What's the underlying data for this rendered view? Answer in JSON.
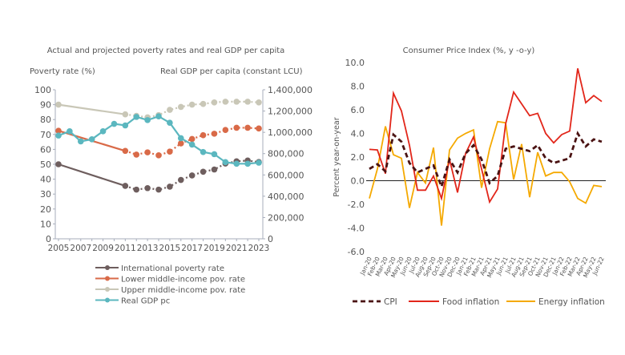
{
  "chart_data": [
    {
      "type": "line",
      "title": "Actual and projected poverty rates and real GDP per capita",
      "ylabel": "Poverty rate (%)",
      "y2label": "Real GDP per capita (constant LCU)",
      "ylim": [
        0,
        100
      ],
      "y2lim": [
        0,
        1400000
      ],
      "yticks": [
        "0",
        "10",
        "20",
        "30",
        "40",
        "50",
        "60",
        "70",
        "80",
        "90",
        "100"
      ],
      "y2ticks": [
        "0",
        "200,000",
        "400,000",
        "600,000",
        "800,000",
        "1,000,000",
        "1,200,000",
        "1,400,000"
      ],
      "xticks": [
        "2005",
        "2007",
        "2009",
        "2011",
        "2013",
        "2015",
        "2017",
        "2019",
        "2021",
        "2023"
      ],
      "xlim": [
        2005,
        2023
      ],
      "grid": false,
      "legend": "bottom",
      "series": [
        {
          "name": "International poverty rate",
          "color": "#6e5e5e",
          "axis": "left",
          "x": [
            2005,
            2011,
            2012,
            2013,
            2014,
            2015,
            2016,
            2017,
            2018,
            2019,
            2020,
            2021,
            2022,
            2023
          ],
          "values": [
            50,
            35.5,
            33,
            34,
            33,
            35,
            39.5,
            42.5,
            45,
            46.5,
            50.5,
            52,
            52.5,
            51.5
          ],
          "projected_from": 2011
        },
        {
          "name": "Lower middle-income pov. rate",
          "color": "#d96a48",
          "axis": "left",
          "x": [
            2005,
            2011,
            2012,
            2013,
            2014,
            2015,
            2016,
            2017,
            2018,
            2019,
            2020,
            2021,
            2022,
            2023
          ],
          "values": [
            72.5,
            59,
            56.5,
            58,
            56,
            58.5,
            64,
            67,
            69.5,
            70.5,
            73,
            74.5,
            74.5,
            74
          ],
          "projected_from": 2011
        },
        {
          "name": "Upper middle-income pov. rate",
          "color": "#c9c7b7",
          "axis": "left",
          "x": [
            2005,
            2011,
            2012,
            2013,
            2014,
            2015,
            2016,
            2017,
            2018,
            2019,
            2020,
            2021,
            2022,
            2023
          ],
          "values": [
            90,
            83.5,
            82.5,
            81.5,
            83,
            86.5,
            88.5,
            90,
            90.5,
            91.5,
            92,
            92,
            92,
            91.5
          ],
          "projected_from": 2011
        },
        {
          "name": "Real GDP pc",
          "color": "#5bb7bf",
          "axis": "right",
          "x": [
            2005,
            2006,
            2007,
            2008,
            2009,
            2010,
            2011,
            2012,
            2013,
            2014,
            2015,
            2016,
            2017,
            2018,
            2019,
            2020,
            2021,
            2022,
            2023
          ],
          "values": [
            970000,
            1010000,
            915000,
            935000,
            1010000,
            1080000,
            1065000,
            1145000,
            1115000,
            1150000,
            1090000,
            945000,
            885000,
            815000,
            795000,
            720000,
            705000,
            705000,
            715000
          ]
        }
      ]
    },
    {
      "type": "line",
      "title": "Consumer Price Index (%, y   -o-y)",
      "ylabel": "Percent year-on-year",
      "ylim": [
        -6,
        10
      ],
      "yticks": [
        "-6.0",
        "-4.0",
        "-2.0",
        "0.0",
        "2.0",
        "4.0",
        "6.0",
        "8.0",
        "10.0"
      ],
      "categories": [
        "Jan-20",
        "Feb-20",
        "Mar-20",
        "Apr-20",
        "May-20",
        "Jun-20",
        "Jul-20",
        "Aug-20",
        "Sep-20",
        "Oct-20",
        "Nov-20",
        "Dec-20",
        "Jan-21",
        "Feb-21",
        "Mar-21",
        "Apr-21",
        "May-21",
        "Jun-21",
        "Jul-21",
        "Aug-21",
        "Sep-21",
        "Oct-21",
        "Nov-21",
        "Dec-21",
        "Jan-22",
        "Feb-22",
        "Mar-22",
        "Apr-22",
        "May-22",
        "Jun-22"
      ],
      "grid": false,
      "legend": "bottom",
      "series": [
        {
          "name": "CPI",
          "color": "#4a1212",
          "style": "dashed",
          "values": [
            1.0,
            1.4,
            0.8,
            3.9,
            3.3,
            1.5,
            0.7,
            1.0,
            1.3,
            -0.5,
            1.8,
            0.7,
            2.3,
            3.0,
            1.8,
            -0.2,
            0.4,
            2.7,
            2.9,
            2.7,
            2.5,
            3.0,
            1.9,
            1.5,
            1.7,
            1.9,
            4.0,
            2.9,
            3.5,
            3.3
          ]
        },
        {
          "name": "Food inflation",
          "color": "#e2261a",
          "style": "solid",
          "values": [
            2.65,
            2.6,
            0.6,
            7.4,
            5.9,
            3.0,
            -0.8,
            -0.8,
            0.4,
            -1.5,
            1.8,
            -1.0,
            2.3,
            3.7,
            1.0,
            -1.8,
            -0.7,
            4.8,
            7.5,
            6.5,
            5.5,
            5.7,
            4.0,
            3.2,
            3.9,
            4.2,
            9.5,
            6.6,
            7.2,
            6.7
          ]
        },
        {
          "name": "Energy inflation",
          "color": "#f5a900",
          "style": "solid",
          "values": [
            -1.5,
            1.0,
            4.6,
            2.2,
            1.9,
            -2.3,
            0.7,
            -0.2,
            2.8,
            -3.8,
            2.6,
            3.6,
            4.0,
            4.3,
            -0.6,
            2.7,
            5.0,
            4.9,
            0.1,
            3.1,
            -1.4,
            2.4,
            0.4,
            0.7,
            0.7,
            -0.1,
            -1.5,
            -1.9,
            -0.4,
            -0.5
          ]
        }
      ]
    }
  ]
}
